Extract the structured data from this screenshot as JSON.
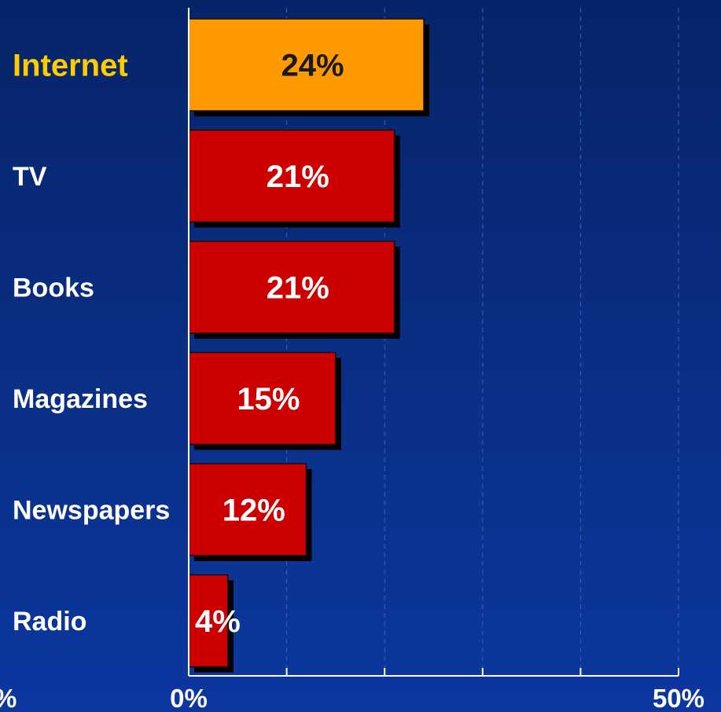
{
  "chart_data": {
    "type": "bar",
    "orientation": "horizontal",
    "categories": [
      "Internet",
      "TV",
      "Books",
      "Magazines",
      "Newspapers",
      "Radio"
    ],
    "values": [
      24,
      21,
      21,
      15,
      12,
      4
    ],
    "value_labels": [
      "24%",
      "21%",
      "21%",
      "15%",
      "12%",
      "4%"
    ],
    "highlight_category": "Internet",
    "xlim": [
      0,
      50
    ],
    "tick_labels": [
      "%",
      "0%",
      "50%"
    ],
    "grid": "vertical dashed",
    "colors": {
      "bar": "#cc0000",
      "highlight_bar": "#ff9900",
      "highlight_text": "#ffcc00",
      "background": "#0a2f86"
    }
  }
}
